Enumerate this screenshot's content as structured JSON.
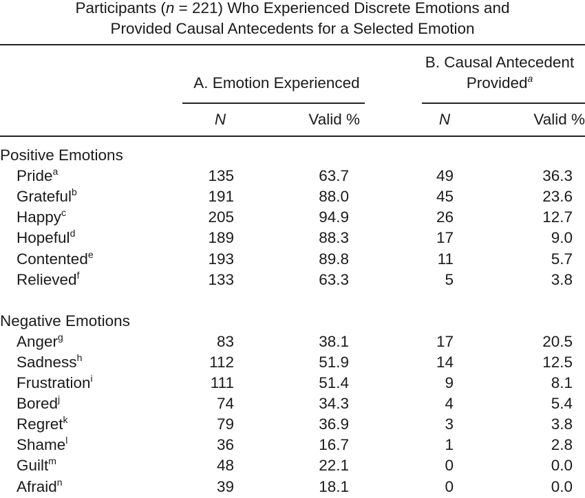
{
  "caption": {
    "line1_pre": "Participants (",
    "line1_n": "n",
    "line1_post": " = 221) Who Experienced Discrete Emotions and",
    "line2": "Provided Causal Antecedents for a Selected Emotion"
  },
  "header": {
    "groupA": "A. Emotion Experienced",
    "groupB_line1": "B. Causal Antecedent",
    "groupB_line2": "Provided",
    "groupB_sup": "a",
    "col_n": "N",
    "col_valid": "Valid %"
  },
  "sections": [
    {
      "title": "Positive Emotions",
      "rows": [
        {
          "label": "Pride",
          "sup": "a",
          "a_n": "135",
          "a_valid": "63.7",
          "b_n": "49",
          "b_valid": "36.3"
        },
        {
          "label": "Grateful",
          "sup": "b",
          "a_n": "191",
          "a_valid": "88.0",
          "b_n": "45",
          "b_valid": "23.6"
        },
        {
          "label": "Happy",
          "sup": "c",
          "a_n": "205",
          "a_valid": "94.9",
          "b_n": "26",
          "b_valid": "12.7"
        },
        {
          "label": "Hopeful",
          "sup": "d",
          "a_n": "189",
          "a_valid": "88.3",
          "b_n": "17",
          "b_valid": "9.0"
        },
        {
          "label": "Contented",
          "sup": "e",
          "a_n": "193",
          "a_valid": "89.8",
          "b_n": "11",
          "b_valid": "5.7"
        },
        {
          "label": "Relieved",
          "sup": "f",
          "a_n": "133",
          "a_valid": "63.3",
          "b_n": "5",
          "b_valid": "3.8"
        }
      ]
    },
    {
      "title": "Negative Emotions",
      "rows": [
        {
          "label": "Anger",
          "sup": "g",
          "a_n": "83",
          "a_valid": "38.1",
          "b_n": "17",
          "b_valid": "20.5"
        },
        {
          "label": "Sadness",
          "sup": "h",
          "a_n": "112",
          "a_valid": "51.9",
          "b_n": "14",
          "b_valid": "12.5"
        },
        {
          "label": "Frustration",
          "sup": "i",
          "a_n": "111",
          "a_valid": "51.4",
          "b_n": "9",
          "b_valid": "8.1"
        },
        {
          "label": "Bored",
          "sup": "j",
          "a_n": "74",
          "a_valid": "34.3",
          "b_n": "4",
          "b_valid": "5.4"
        },
        {
          "label": "Regret",
          "sup": "k",
          "a_n": "79",
          "a_valid": "36.9",
          "b_n": "3",
          "b_valid": "3.8"
        },
        {
          "label": "Shame",
          "sup": "l",
          "a_n": "36",
          "a_valid": "16.7",
          "b_n": "1",
          "b_valid": "2.8"
        },
        {
          "label": "Guilt",
          "sup": "m",
          "a_n": "48",
          "a_valid": "22.1",
          "b_n": "0",
          "b_valid": "0.0"
        },
        {
          "label": "Afraid",
          "sup": "n",
          "a_n": "39",
          "a_valid": "18.1",
          "b_n": "0",
          "b_valid": "0.0"
        }
      ]
    }
  ]
}
